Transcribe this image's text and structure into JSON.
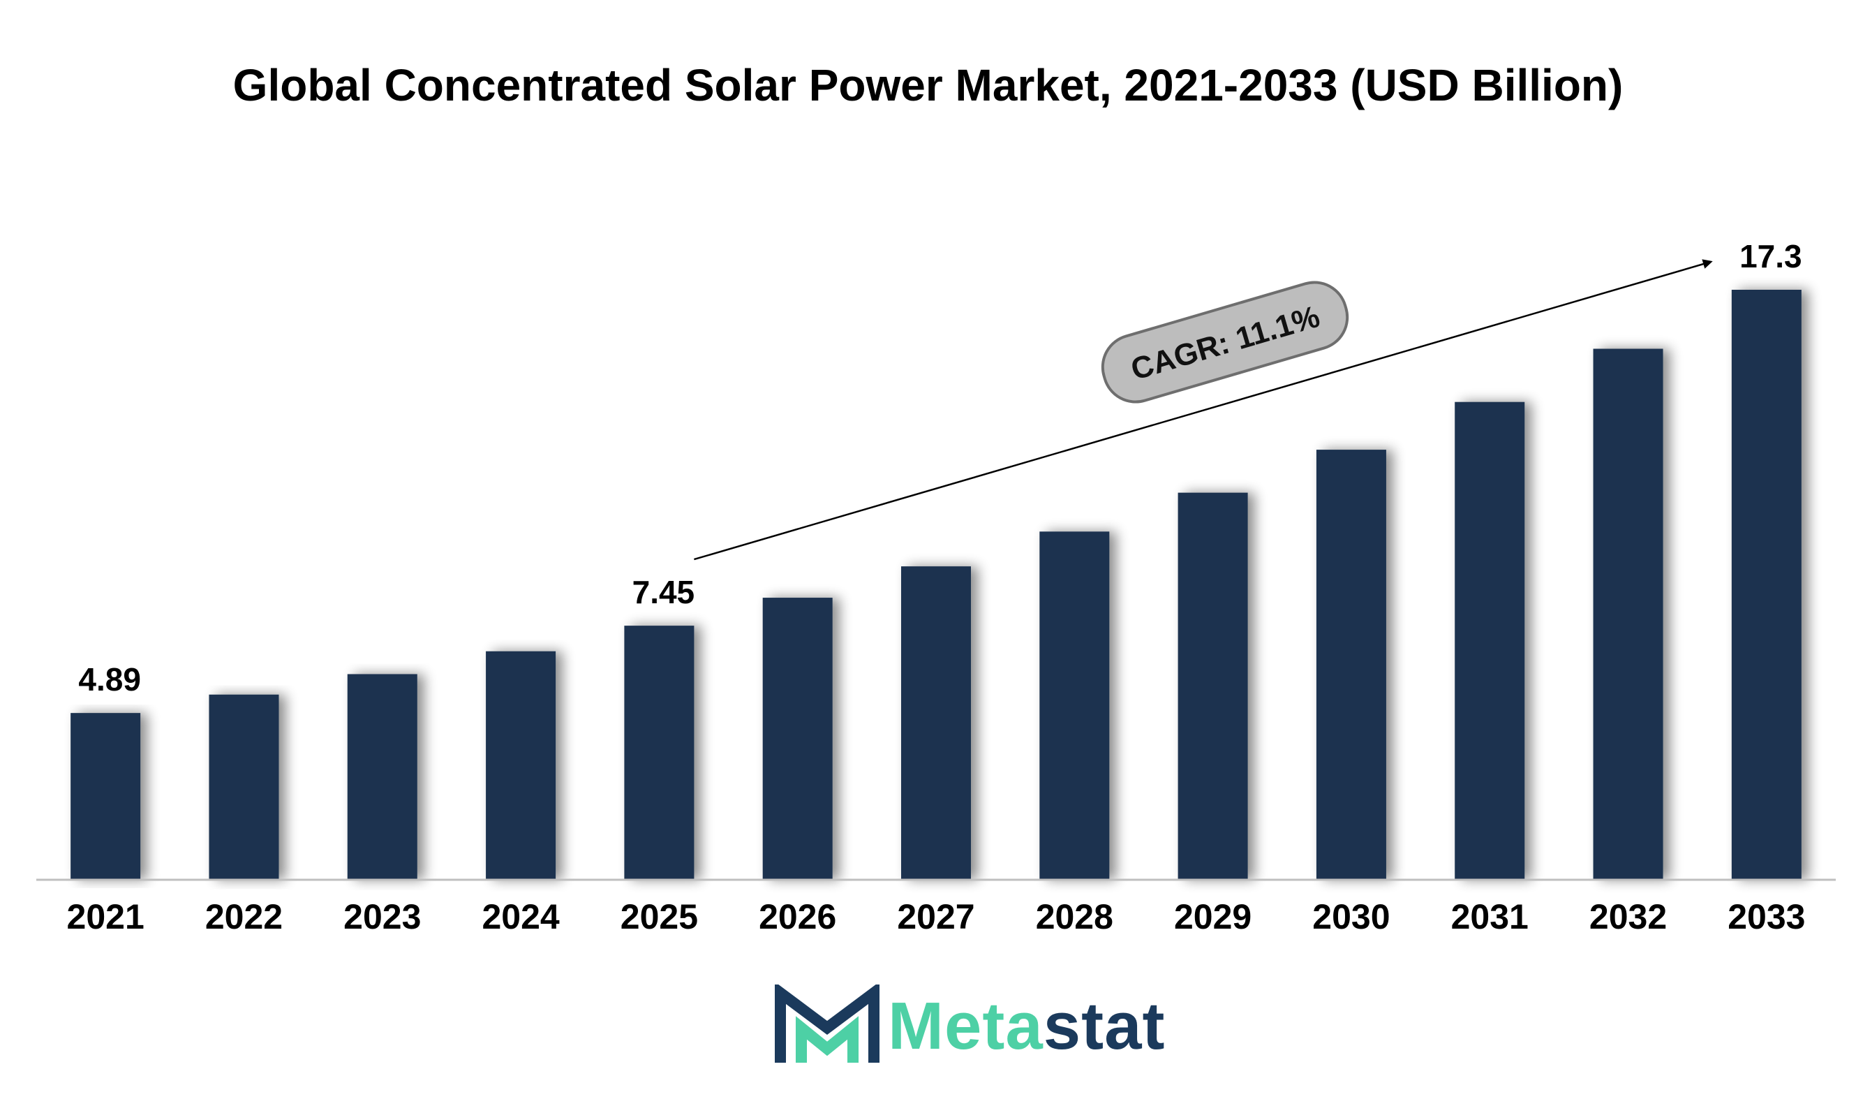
{
  "chart_data": {
    "type": "bar",
    "title": "Global Concentrated Solar Power Market, 2021-2033 (USD Billion)",
    "xlabel": "",
    "ylabel": "",
    "categories": [
      "2021",
      "2022",
      "2023",
      "2024",
      "2025",
      "2026",
      "2027",
      "2028",
      "2029",
      "2030",
      "2031",
      "2032",
      "2033"
    ],
    "values": [
      4.89,
      5.43,
      6.03,
      6.7,
      7.45,
      8.27,
      9.19,
      10.21,
      11.35,
      12.61,
      14.01,
      15.57,
      17.3
    ],
    "data_labels": [
      {
        "category": "2021",
        "text": "4.89"
      },
      {
        "category": "2025",
        "text": "7.45"
      },
      {
        "category": "2033",
        "text": "17.3"
      }
    ],
    "ylim": [
      0,
      17.3
    ],
    "grid": false,
    "legend": "none",
    "annotation": {
      "text": "CAGR: 11.1%",
      "from_category": "2025",
      "to_category": "2033"
    },
    "colors": {
      "bar": "#1b3350",
      "axis": "#bfbfbf",
      "badge_fill": "#bdbdbd",
      "badge_stroke": "#6e6e6e"
    }
  },
  "logo": {
    "text_part1": "Meta",
    "text_part2": "stat",
    "colors": {
      "green": "#4dd0a5",
      "navy": "#1b3a5c"
    }
  }
}
